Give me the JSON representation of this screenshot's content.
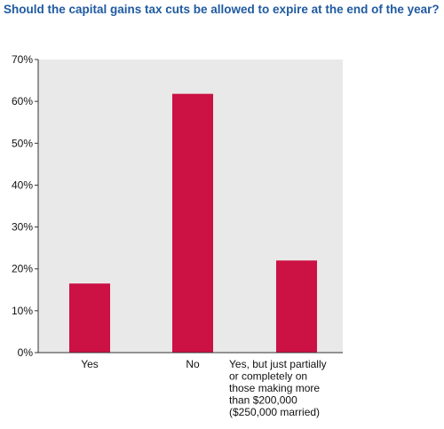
{
  "chart_data": {
    "type": "bar",
    "title": "Should the capital gains tax cuts be allowed to expire at the end of the year?",
    "categories": [
      [
        "Yes"
      ],
      [
        "No"
      ],
      [
        "Yes, but just partially",
        "or completely on",
        "those making more",
        "than $200,000",
        "($250,000 married)"
      ]
    ],
    "values": [
      16.5,
      61.8,
      22.0
    ],
    "ylim": [
      0,
      70
    ],
    "yticks": [
      "0%",
      "10%",
      "20%",
      "30%",
      "40%",
      "50%",
      "60%",
      "70%"
    ],
    "grid": false,
    "colors": {
      "bar": "#cc1144",
      "plot_background": "#e9e9e9",
      "title": "#1f5aa0"
    }
  }
}
